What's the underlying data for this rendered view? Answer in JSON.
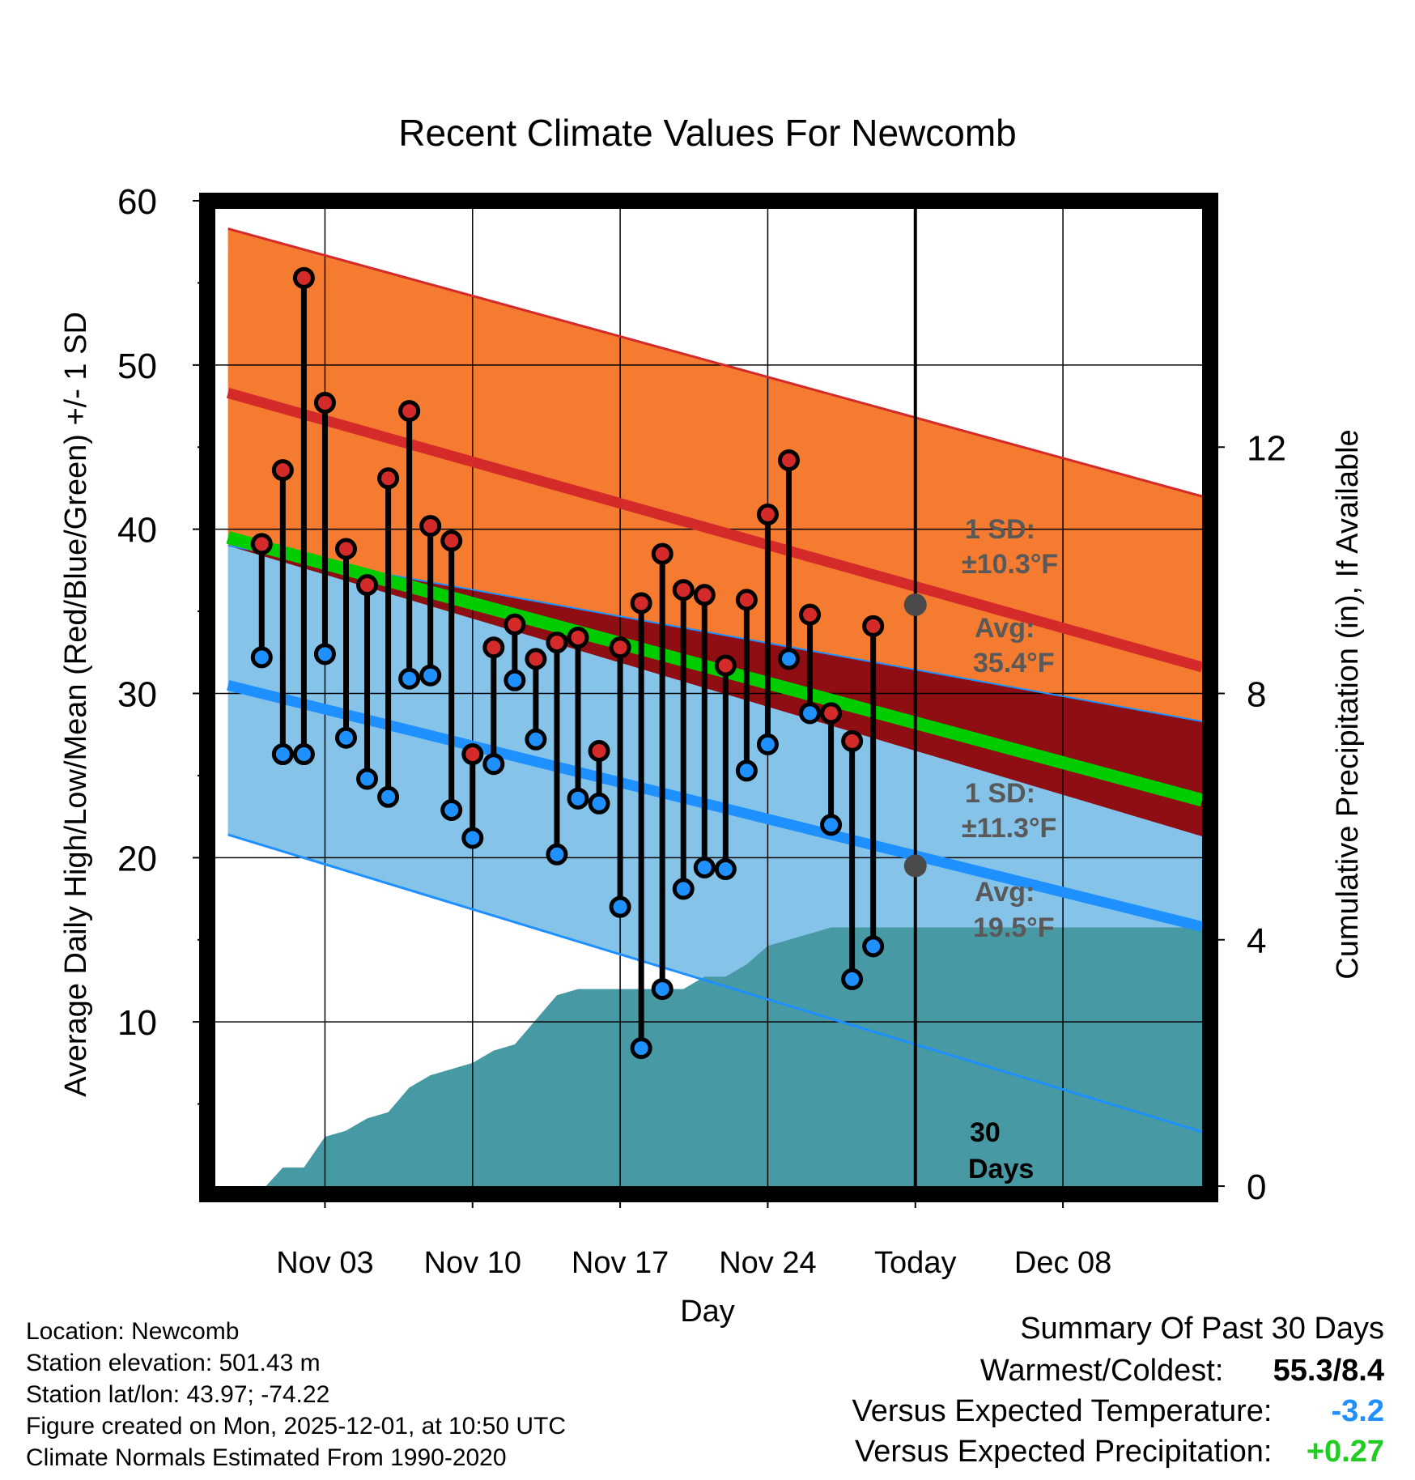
{
  "colors": {
    "high_band": "#f47b30",
    "high_line": "#d42a2a",
    "low_band": "#85c3e8",
    "low_line": "#1e90ff",
    "mean_line": "#00cc00",
    "dark_band": "#8e0e14",
    "precip": "#4799a3",
    "marker_gray": "#4a4a4a",
    "annotation_gray": "#595959",
    "versus_temp": "#1e90ff",
    "versus_precip": "#22cc22"
  },
  "chart_data": {
    "type": "line",
    "title": "Recent Climate Values For Newcomb",
    "xlabel": "Day",
    "ylabel": "Average Daily High/Low/Mean (Red/Blue/Green) +/- 1 SD",
    "y2label": "Cumulative Precipitation (in), If Available",
    "ylim": [
      0,
      60
    ],
    "y2lim": [
      0,
      16
    ],
    "xlim": [
      -3.2,
      43.6
    ],
    "x_tick_days": [
      2,
      9,
      16,
      23,
      30,
      37
    ],
    "x_tick_labels": [
      "Nov 03",
      "Nov 10",
      "Nov 17",
      "Nov 24",
      "Today",
      "Dec 08"
    ],
    "y_ticks": [
      10,
      20,
      30,
      40,
      50,
      60
    ],
    "y2_ticks": [
      0,
      4,
      8,
      12
    ],
    "today_day": 30,
    "normals_days": [
      -2.6,
      43.6
    ],
    "normal_high_mean": [
      48.3,
      31.6
    ],
    "normal_high_upper": [
      58.3,
      42.0
    ],
    "normal_low_mean": [
      30.5,
      15.8
    ],
    "normal_low_lower": [
      21.4,
      3.3
    ],
    "normal_mean": [
      39.5,
      23.5
    ],
    "normal_dark_upper": [
      39.0,
      28.3
    ],
    "normal_dark_lower": [
      39.0,
      21.3
    ],
    "daily": [
      {
        "day": -1,
        "high": 39.1,
        "low": 32.2
      },
      {
        "day": 0,
        "high": 43.6,
        "low": 26.3
      },
      {
        "day": 1,
        "high": 55.3,
        "low": 26.3
      },
      {
        "day": 2,
        "high": 47.7,
        "low": 32.4
      },
      {
        "day": 3,
        "high": 38.8,
        "low": 27.3
      },
      {
        "day": 4,
        "high": 36.6,
        "low": 24.8
      },
      {
        "day": 5,
        "high": 43.1,
        "low": 23.7
      },
      {
        "day": 6,
        "high": 47.2,
        "low": 30.9
      },
      {
        "day": 7,
        "high": 40.2,
        "low": 31.1
      },
      {
        "day": 8,
        "high": 39.3,
        "low": 22.9
      },
      {
        "day": 9,
        "high": 26.3,
        "low": 21.2
      },
      {
        "day": 10,
        "high": 32.8,
        "low": 25.7
      },
      {
        "day": 11,
        "high": 34.2,
        "low": 30.8
      },
      {
        "day": 12,
        "high": 32.1,
        "low": 27.2
      },
      {
        "day": 13,
        "high": 33.1,
        "low": 20.2
      },
      {
        "day": 14,
        "high": 33.4,
        "low": 23.6
      },
      {
        "day": 15,
        "high": 26.5,
        "low": 23.3
      },
      {
        "day": 16,
        "high": 32.8,
        "low": 17.0
      },
      {
        "day": 17,
        "high": 35.5,
        "low": 8.4
      },
      {
        "day": 18,
        "high": 38.5,
        "low": 12.0
      },
      {
        "day": 19,
        "high": 36.3,
        "low": 18.1
      },
      {
        "day": 20,
        "high": 36.0,
        "low": 19.4
      },
      {
        "day": 21,
        "high": 31.7,
        "low": 19.3
      },
      {
        "day": 22,
        "high": 35.7,
        "low": 25.3
      },
      {
        "day": 23,
        "high": 40.9,
        "low": 26.9
      },
      {
        "day": 24,
        "high": 44.2,
        "low": 32.1
      },
      {
        "day": 25,
        "high": 34.8,
        "low": 28.8
      },
      {
        "day": 26,
        "high": 28.8,
        "low": 22.0
      },
      {
        "day": 27,
        "high": 27.1,
        "low": 12.6
      },
      {
        "day": 28,
        "high": 34.1,
        "low": 14.6
      }
    ],
    "precip_cumulative": [
      {
        "day": -3.2,
        "value": 0
      },
      {
        "day": -0.8,
        "value": 0
      },
      {
        "day": 0,
        "value": 0.3
      },
      {
        "day": 1,
        "value": 0.3
      },
      {
        "day": 2,
        "value": 0.8
      },
      {
        "day": 3,
        "value": 0.9
      },
      {
        "day": 4,
        "value": 1.1
      },
      {
        "day": 5,
        "value": 1.2
      },
      {
        "day": 6,
        "value": 1.6
      },
      {
        "day": 7,
        "value": 1.8
      },
      {
        "day": 8,
        "value": 1.9
      },
      {
        "day": 9,
        "value": 2.0
      },
      {
        "day": 10,
        "value": 2.2
      },
      {
        "day": 11,
        "value": 2.3
      },
      {
        "day": 12,
        "value": 2.7
      },
      {
        "day": 13,
        "value": 3.1
      },
      {
        "day": 14,
        "value": 3.2
      },
      {
        "day": 15,
        "value": 3.2
      },
      {
        "day": 16,
        "value": 3.2
      },
      {
        "day": 17,
        "value": 3.2
      },
      {
        "day": 18,
        "value": 3.2
      },
      {
        "day": 19,
        "value": 3.2
      },
      {
        "day": 20,
        "value": 3.4
      },
      {
        "day": 21,
        "value": 3.4
      },
      {
        "day": 22,
        "value": 3.6
      },
      {
        "day": 23,
        "value": 3.9
      },
      {
        "day": 24,
        "value": 4.0
      },
      {
        "day": 25,
        "value": 4.1
      },
      {
        "day": 26,
        "value": 4.2
      },
      {
        "day": 27,
        "value": 4.2
      },
      {
        "day": 28,
        "value": 4.2
      },
      {
        "day": 43.6,
        "value": 4.2
      }
    ],
    "annotations": {
      "high_sd_label": "1 SD:",
      "high_sd_value": "±10.3°F",
      "high_avg_label": "Avg:",
      "high_avg_value": "35.4°F",
      "high_avg": 35.4,
      "low_sd_label": "1 SD:",
      "low_sd_value": "±11.3°F",
      "low_avg_label": "Avg:",
      "low_avg_value": "19.5°F",
      "low_avg": 19.5,
      "days_number": "30",
      "days_word": "Days"
    }
  },
  "metadata": {
    "location": "Location: Newcomb",
    "elevation": "Station elevation: 501.43 m",
    "latlon": "Station lat/lon: 43.97; -74.22",
    "created": "Figure created on Mon, 2025-12-01, at 10:50 UTC",
    "normals": "Climate Normals Estimated From 1990-2020"
  },
  "summary": {
    "title": "Summary Of Past 30 Days",
    "warmest_label": "Warmest/Coldest:",
    "warmest_value": "55.3/8.4",
    "temp_label": "Versus Expected Temperature:",
    "temp_value": "-3.2",
    "precip_label": "Versus Expected Precipitation:",
    "precip_value": "+0.27"
  }
}
